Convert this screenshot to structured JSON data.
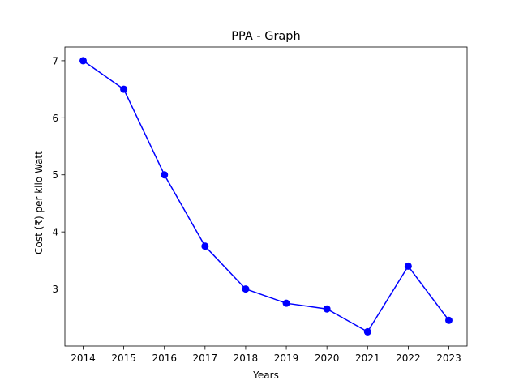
{
  "chart_data": {
    "type": "line",
    "title": "PPA - Graph",
    "xlabel": "Years",
    "ylabel": "Cost (₹) per kilo Watt",
    "x": [
      "2014",
      "2015",
      "2016",
      "2017",
      "2018",
      "2019",
      "2020",
      "2021",
      "2022",
      "2023"
    ],
    "series": [
      {
        "values": [
          7.0,
          6.5,
          5.0,
          3.75,
          3.0,
          2.75,
          2.65,
          2.25,
          3.4,
          2.45
        ],
        "color": "#0000ff",
        "marker": "circle"
      }
    ],
    "yticks": [
      3,
      4,
      5,
      6,
      7
    ],
    "ylim": [
      2.0,
      7.24
    ],
    "grid": false,
    "legend": "none"
  }
}
